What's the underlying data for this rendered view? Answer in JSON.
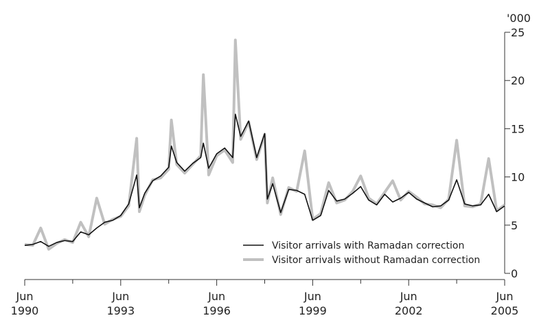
{
  "chart_data": {
    "type": "line",
    "unit_label": "'000",
    "ylim": [
      0,
      25
    ],
    "y_ticks": [
      0,
      5,
      10,
      15,
      20,
      25
    ],
    "xlim": [
      "1990-06",
      "2005-06"
    ],
    "x_ticks": [
      {
        "value": "1990-06",
        "label_top": "Jun",
        "label_bottom": "1990"
      },
      {
        "value": "1993-06",
        "label_top": "Jun",
        "label_bottom": "1993"
      },
      {
        "value": "1996-06",
        "label_top": "Jun",
        "label_bottom": "1996"
      },
      {
        "value": "1999-06",
        "label_top": "Jun",
        "label_bottom": "1999"
      },
      {
        "value": "2002-06",
        "label_top": "Jun",
        "label_bottom": "2002"
      },
      {
        "value": "2005-06",
        "label_top": "Jun",
        "label_bottom": "2005"
      }
    ],
    "minor_x_ticks": [
      "1991-12",
      "1994-12",
      "1997-12",
      "2000-12",
      "2003-12"
    ],
    "grid": false,
    "legend_position": "bottom-right",
    "series": [
      {
        "name": "Visitor arrivals with Ramadan correction",
        "color": "#111111",
        "x": [
          "1990-06",
          "1990-09",
          "1990-12",
          "1991-03",
          "1991-06",
          "1991-09",
          "1991-12",
          "1992-03",
          "1992-06",
          "1992-09",
          "1992-12",
          "1993-03",
          "1993-06",
          "1993-09",
          "1993-12",
          "1994-01",
          "1994-03",
          "1994-06",
          "1994-09",
          "1994-12",
          "1995-01",
          "1995-03",
          "1995-06",
          "1995-09",
          "1995-12",
          "1996-01",
          "1996-03",
          "1996-06",
          "1996-09",
          "1996-12",
          "1997-01",
          "1997-03",
          "1997-06",
          "1997-09",
          "1997-12",
          "1998-01",
          "1998-03",
          "1998-06",
          "1998-09",
          "1998-12",
          "1999-03",
          "1999-06",
          "1999-09",
          "1999-12",
          "2000-03",
          "2000-06",
          "2000-09",
          "2000-12",
          "2001-03",
          "2001-06",
          "2001-09",
          "2001-12",
          "2002-03",
          "2002-06",
          "2002-09",
          "2002-12",
          "2003-03",
          "2003-06",
          "2003-09",
          "2003-12",
          "2004-03",
          "2004-06",
          "2004-09",
          "2004-12",
          "2005-03",
          "2005-06"
        ],
        "values": [
          2.9,
          3.0,
          3.3,
          2.8,
          3.2,
          3.4,
          3.3,
          4.3,
          4.0,
          4.7,
          5.3,
          5.5,
          6.0,
          7.2,
          10.2,
          6.8,
          8.3,
          9.6,
          10.1,
          11.0,
          13.2,
          11.5,
          10.6,
          11.4,
          12.0,
          13.5,
          10.9,
          12.4,
          13.0,
          12.0,
          16.5,
          14.2,
          15.8,
          12.0,
          14.5,
          7.7,
          9.3,
          6.3,
          8.7,
          8.6,
          8.2,
          5.5,
          6.0,
          8.6,
          7.5,
          7.7,
          8.3,
          9.0,
          7.6,
          7.1,
          8.2,
          7.4,
          7.8,
          8.4,
          7.7,
          7.3,
          6.9,
          7.0,
          7.6,
          9.7,
          7.2,
          7.0,
          7.1,
          8.2,
          6.4,
          7.0
        ]
      },
      {
        "name": "Visitor arrivals without Ramadan correction",
        "color": "#c0c0c0",
        "x": [
          "1990-06",
          "1990-09",
          "1990-12",
          "1991-03",
          "1991-06",
          "1991-09",
          "1991-12",
          "1992-03",
          "1992-06",
          "1992-09",
          "1992-12",
          "1993-03",
          "1993-06",
          "1993-09",
          "1993-12",
          "1994-01",
          "1994-03",
          "1994-06",
          "1994-09",
          "1994-12",
          "1995-01",
          "1995-03",
          "1995-06",
          "1995-09",
          "1995-12",
          "1996-01",
          "1996-03",
          "1996-06",
          "1996-09",
          "1996-12",
          "1997-01",
          "1997-03",
          "1997-06",
          "1997-09",
          "1997-12",
          "1998-01",
          "1998-03",
          "1998-06",
          "1998-09",
          "1998-12",
          "1999-03",
          "1999-06",
          "1999-09",
          "1999-12",
          "2000-03",
          "2000-06",
          "2000-09",
          "2000-12",
          "2001-03",
          "2001-06",
          "2001-09",
          "2001-12",
          "2002-03",
          "2002-06",
          "2002-09",
          "2002-12",
          "2003-03",
          "2003-06",
          "2003-09",
          "2003-12",
          "2004-03",
          "2004-06",
          "2004-09",
          "2004-12",
          "2005-03",
          "2005-06"
        ],
        "values": [
          3.0,
          2.9,
          4.7,
          2.5,
          3.1,
          3.5,
          3.2,
          5.3,
          3.8,
          7.8,
          5.1,
          5.6,
          5.9,
          7.0,
          14.0,
          6.4,
          8.1,
          9.7,
          9.9,
          10.8,
          15.9,
          11.3,
          10.4,
          11.3,
          12.2,
          20.6,
          10.2,
          12.2,
          12.8,
          11.5,
          24.2,
          13.9,
          15.7,
          11.8,
          14.4,
          7.3,
          9.9,
          6.1,
          8.9,
          8.5,
          12.7,
          5.6,
          6.2,
          9.4,
          7.3,
          7.6,
          8.5,
          10.1,
          7.8,
          7.2,
          8.4,
          9.6,
          7.6,
          8.5,
          7.9,
          7.2,
          7.1,
          6.8,
          7.7,
          13.8,
          7.0,
          6.9,
          7.2,
          11.9,
          6.5,
          7.1
        ]
      }
    ]
  }
}
